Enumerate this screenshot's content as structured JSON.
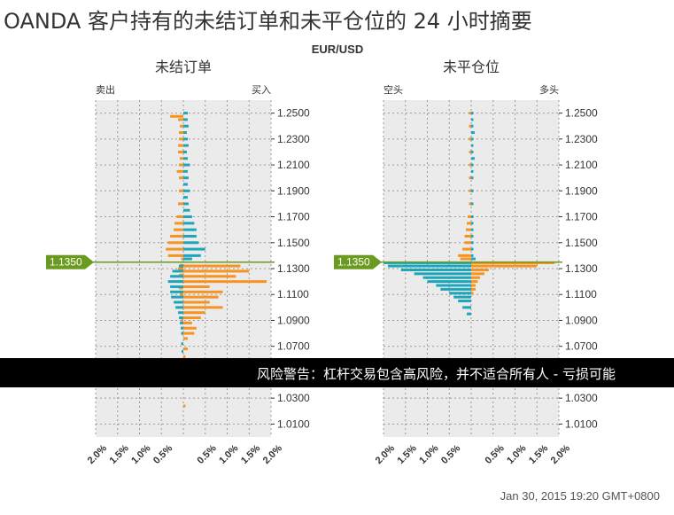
{
  "title": "OANDA 客户持有的未结订单和未平仓位的 24 小时摘要",
  "pair": "EUR/USD",
  "warning": "风险警告：杠杆交易包含高风险，并不适合所有人 - 亏损可能",
  "timestamp": "Jan 30, 2015 19:20 GMT+0800",
  "colors": {
    "orange": "#f7931e",
    "teal": "#1ba6bb",
    "plot_bg": "#ebebeb",
    "grid": "#999999",
    "current_price": "#6a9a1f"
  },
  "chart_data": [
    {
      "type": "bar",
      "title": "未结订单",
      "left_label": "卖出",
      "right_label": "买入",
      "xlim": [
        -2.0,
        2.0
      ],
      "x_ticks": [
        "2.0%",
        "1.5%",
        "1.0%",
        "0.5%",
        "",
        "0.5%",
        "1.0%",
        "1.5%",
        "2.0%"
      ],
      "ylim": [
        1.0,
        1.26
      ],
      "y_ticks": [
        "1.2500",
        "1.2300",
        "1.2100",
        "1.1900",
        "1.1700",
        "1.1500",
        "1.1300",
        "1.1100",
        "1.0900",
        "1.0700",
        "1.0500",
        "1.0300",
        "1.0100"
      ],
      "current_price": 1.135,
      "current_price_label": "1.1350",
      "series": [
        {
          "side": "sell",
          "color_key": "orange",
          "y": [
            1.2475,
            1.245,
            1.24,
            1.235,
            1.23,
            1.225,
            1.22,
            1.215,
            1.21,
            1.205,
            1.2,
            1.19,
            1.18,
            1.17,
            1.165,
            1.16,
            1.155,
            1.15,
            1.145,
            1.14,
            1.1375,
            1.1325,
            1.13,
            1.125,
            1.12,
            1.115,
            1.11,
            1.1,
            1.09,
            1.08
          ],
          "values": [
            0.3,
            0.12,
            0.08,
            0.1,
            0.1,
            0.12,
            0.12,
            0.08,
            0.1,
            0.15,
            0.1,
            0.1,
            0.12,
            0.15,
            0.2,
            0.22,
            0.3,
            0.35,
            0.4,
            0.35,
            0.05,
            0.08,
            0.12,
            0.1,
            0.1,
            0.1,
            0.08,
            0.05,
            0.05,
            0.05
          ]
        },
        {
          "side": "sell",
          "color_key": "teal",
          "y": [
            1.132,
            1.128,
            1.124,
            1.12,
            1.116,
            1.112,
            1.108,
            1.104,
            1.1,
            1.096,
            1.092,
            1.088,
            1.084,
            1.08,
            1.072,
            1.066
          ],
          "values": [
            0.1,
            0.25,
            0.3,
            0.35,
            0.3,
            0.3,
            0.28,
            0.22,
            0.18,
            0.12,
            0.1,
            0.08,
            0.06,
            0.05,
            0.05,
            0.04
          ]
        },
        {
          "side": "buy",
          "color_key": "teal",
          "y": [
            1.25,
            1.245,
            1.24,
            1.235,
            1.23,
            1.225,
            1.22,
            1.215,
            1.21,
            1.205,
            1.2,
            1.195,
            1.19,
            1.185,
            1.18,
            1.175,
            1.17,
            1.165,
            1.16,
            1.155,
            1.15,
            1.145,
            1.14,
            1.1375
          ],
          "values": [
            0.1,
            0.1,
            0.12,
            0.08,
            0.1,
            0.12,
            0.08,
            0.1,
            0.15,
            0.1,
            0.12,
            0.1,
            0.15,
            0.1,
            0.12,
            0.15,
            0.2,
            0.25,
            0.3,
            0.3,
            0.35,
            0.5,
            0.4,
            0.2
          ]
        },
        {
          "side": "buy",
          "color_key": "orange",
          "y": [
            1.132,
            1.128,
            1.124,
            1.12,
            1.116,
            1.112,
            1.108,
            1.104,
            1.1,
            1.096,
            1.092,
            1.088,
            1.084,
            1.08,
            1.076,
            1.068,
            1.062,
            1.024
          ],
          "values": [
            1.3,
            1.5,
            1.2,
            1.9,
            0.6,
            0.9,
            0.8,
            0.6,
            0.9,
            0.5,
            0.4,
            0.2,
            0.3,
            0.25,
            0.1,
            0.1,
            0.05,
            0.05
          ]
        }
      ]
    },
    {
      "type": "bar",
      "title": "未平仓位",
      "left_label": "空头",
      "right_label": "多头",
      "xlim": [
        -2.0,
        2.0
      ],
      "x_ticks": [
        "2.0%",
        "1.5%",
        "1.0%",
        "0.5%",
        "",
        "0.5%",
        "1.0%",
        "1.5%",
        "2.0%"
      ],
      "ylim": [
        1.0,
        1.26
      ],
      "y_ticks": [
        "1.2500",
        "1.2300",
        "1.2100",
        "1.1900",
        "1.1700",
        "1.1500",
        "1.1300",
        "1.1100",
        "1.0900",
        "1.0700",
        "1.0500",
        "1.0300",
        "1.0100"
      ],
      "current_price": 1.135,
      "current_price_label": "1.1350",
      "series": [
        {
          "side": "short",
          "color_key": "teal",
          "y": [
            1.1345,
            1.132,
            1.129,
            1.126,
            1.123,
            1.12,
            1.117,
            1.114,
            1.111,
            1.108,
            1.105,
            1.1,
            1.095
          ],
          "values": [
            2.0,
            1.9,
            1.6,
            1.3,
            1.1,
            1.0,
            0.8,
            0.7,
            0.5,
            0.4,
            0.3,
            0.2,
            0.1
          ]
        },
        {
          "side": "short",
          "color_key": "orange",
          "y": [
            1.25,
            1.24,
            1.23,
            1.22,
            1.21,
            1.2,
            1.19,
            1.18,
            1.17,
            1.165,
            1.16,
            1.155,
            1.15,
            1.145,
            1.14,
            1.1375
          ],
          "values": [
            0.05,
            0.05,
            0.05,
            0.05,
            0.05,
            0.05,
            0.05,
            0.05,
            0.08,
            0.1,
            0.12,
            0.15,
            0.15,
            0.2,
            0.3,
            0.25
          ]
        },
        {
          "side": "long",
          "color_key": "orange",
          "y": [
            1.1345,
            1.132,
            1.129,
            1.126,
            1.123,
            1.12,
            1.117,
            1.114,
            1.111
          ],
          "values": [
            1.9,
            1.5,
            0.4,
            0.3,
            0.2,
            0.15,
            0.1,
            0.1,
            0.05
          ]
        },
        {
          "side": "long",
          "color_key": "teal",
          "y": [
            1.25,
            1.245,
            1.24,
            1.235,
            1.23,
            1.225,
            1.22,
            1.215,
            1.21,
            1.205,
            1.2,
            1.19,
            1.18,
            1.17,
            1.165,
            1.16,
            1.155,
            1.15,
            1.145,
            1.14,
            1.1375
          ],
          "values": [
            0.05,
            0.05,
            0.05,
            0.08,
            0.05,
            0.05,
            0.05,
            0.08,
            0.05,
            0.05,
            0.05,
            0.05,
            0.05,
            0.05,
            0.05,
            0.05,
            0.05,
            0.05,
            0.05,
            0.05,
            0.1
          ]
        }
      ]
    }
  ]
}
